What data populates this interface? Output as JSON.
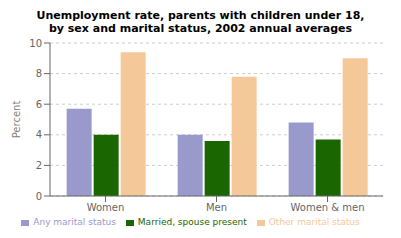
{
  "chart_data": {
    "type": "bar",
    "title": "Unemployment rate, parents with children under 18,\nby sex and marital status, 2002 annual averages",
    "categories": [
      "Women",
      "Men",
      "Women & men"
    ],
    "series": [
      {
        "name": "Any marital status",
        "color": "#9999cc",
        "values": [
          5.7,
          4.0,
          4.8
        ]
      },
      {
        "name": "Married, spouse present",
        "color": "#1a6600",
        "values": [
          4.0,
          3.6,
          3.7
        ]
      },
      {
        "name": "Other marital status",
        "color": "#f5c89a",
        "values": [
          9.4,
          7.8,
          9.0
        ]
      }
    ],
    "ylabel": "Percent",
    "ylim": [
      0,
      10
    ],
    "yticks": [
      0,
      2,
      4,
      6,
      8,
      10
    ],
    "grid": true,
    "legend": "bottom"
  }
}
